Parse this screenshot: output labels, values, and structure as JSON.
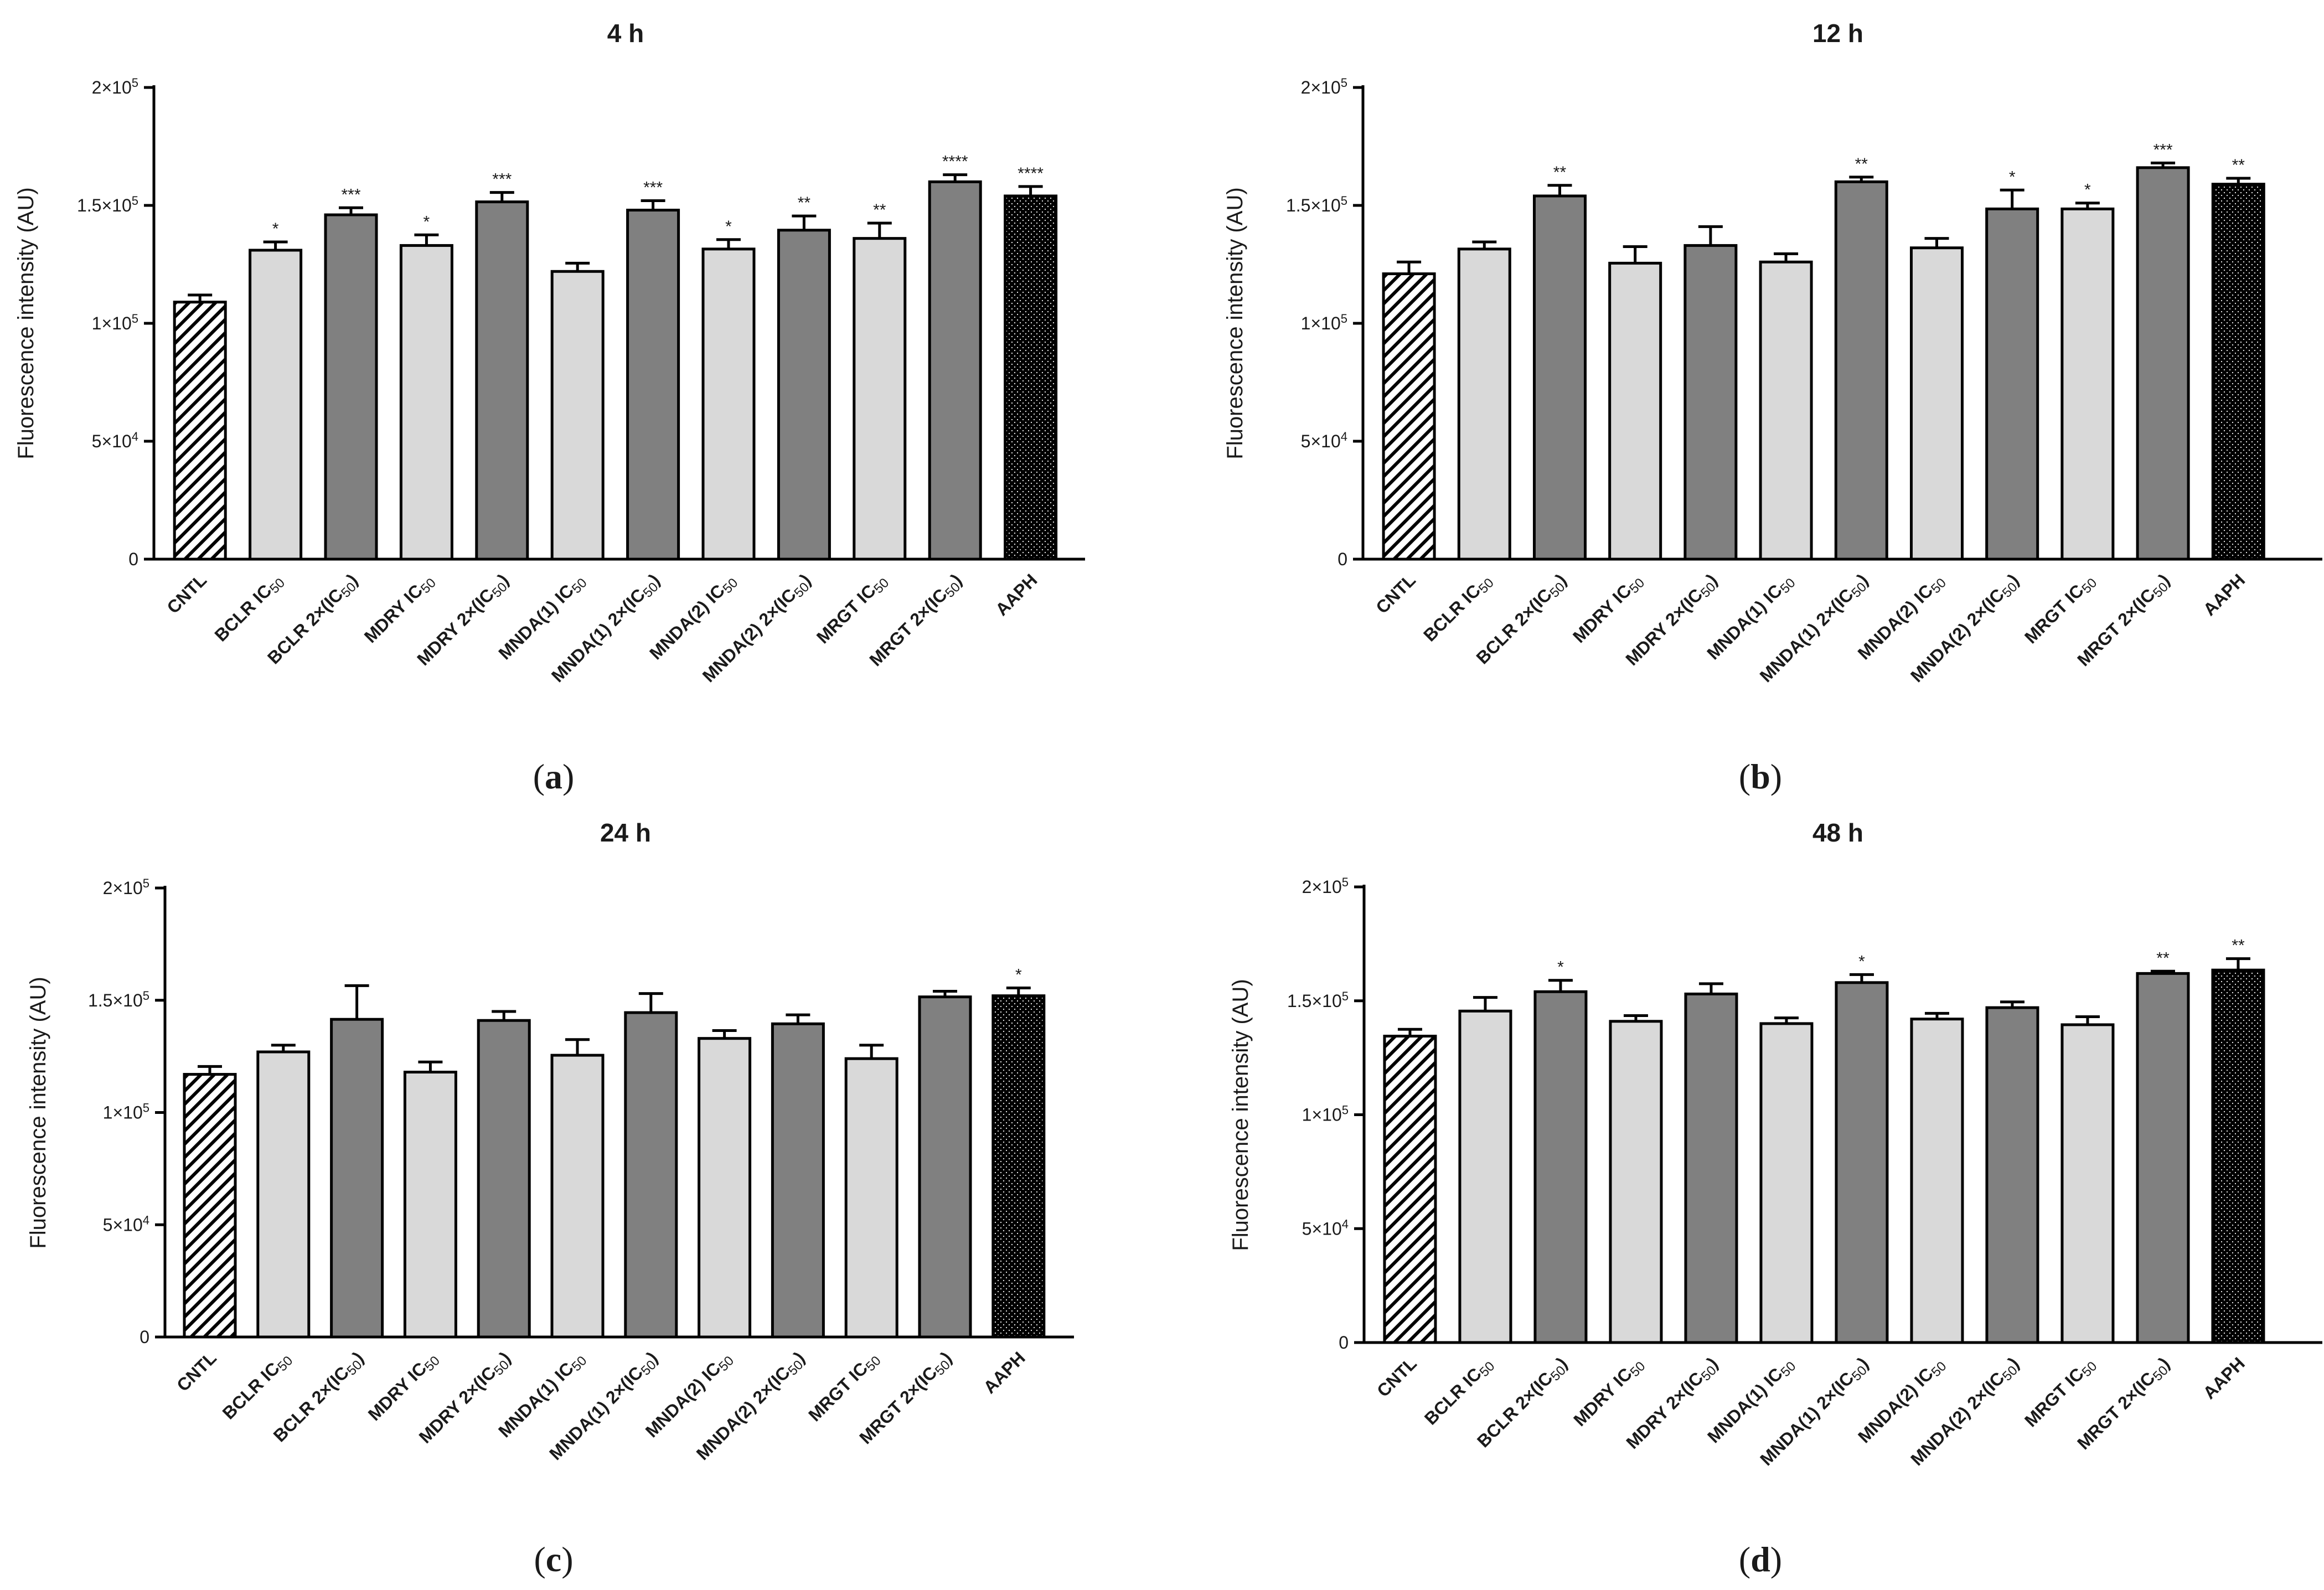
{
  "categories": [
    {
      "base": "CNTL",
      "kind": "none"
    },
    {
      "base": "BCLR",
      "kind": "ic"
    },
    {
      "base": "BCLR",
      "kind": "ic2"
    },
    {
      "base": "MDRY",
      "kind": "ic"
    },
    {
      "base": "MDRY",
      "kind": "ic2"
    },
    {
      "base": "MNDA(1)",
      "kind": "ic"
    },
    {
      "base": "MNDA(1)",
      "kind": "ic2"
    },
    {
      "base": "MNDA(2)",
      "kind": "ic"
    },
    {
      "base": "MNDA(2)",
      "kind": "ic2"
    },
    {
      "base": "MRGT",
      "kind": "ic"
    },
    {
      "base": "MRGT",
      "kind": "ic2"
    },
    {
      "base": "AAPH",
      "kind": "none"
    }
  ],
  "label_parts": {
    "ic": " IC",
    "ic2": " 2×(IC",
    "sub": "50",
    "close": ")"
  },
  "bar_styles": [
    "hatch",
    "light",
    "dark",
    "light",
    "dark",
    "light",
    "dark",
    "light",
    "dark",
    "light",
    "dark",
    "dots"
  ],
  "colors": {
    "light": "#d9d9d9",
    "dark": "#808080",
    "hatch_bg": "#ffffff",
    "hatch_line": "#000000",
    "dots_bg": "#000000",
    "dots_fg": "#ffffff",
    "axis": "#000000"
  },
  "y_axis": {
    "label": "Fluorescence intensity (AU)",
    "min": 0,
    "max": 200000,
    "ticks": [
      {
        "value": 0,
        "mant": "0",
        "exp": ""
      },
      {
        "value": 50000,
        "mant": "5×10",
        "exp": "4"
      },
      {
        "value": 100000,
        "mant": "1×10",
        "exp": "5"
      },
      {
        "value": 150000,
        "mant": "1.5×10",
        "exp": "5"
      },
      {
        "value": 200000,
        "mant": "2×10",
        "exp": "5"
      }
    ]
  },
  "chart_data": [
    {
      "type": "bar",
      "title": "4 h",
      "panel_label": "a",
      "ylabel": "Fluorescence intensity (AU)",
      "ylim": [
        0,
        200000
      ],
      "values": [
        109000,
        131000,
        146000,
        133000,
        151500,
        122000,
        148000,
        131500,
        139500,
        136000,
        160000,
        154000
      ],
      "errors": [
        3000,
        3500,
        3000,
        4500,
        4000,
        3500,
        4000,
        4000,
        6000,
        6500,
        3000,
        4000
      ],
      "significance": [
        "",
        "*",
        "***",
        "*",
        "***",
        "",
        "***",
        "*",
        "**",
        "**",
        "****",
        "****"
      ]
    },
    {
      "type": "bar",
      "title": "12 h",
      "panel_label": "b",
      "ylabel": "Fluorescence intensity (AU)",
      "ylim": [
        0,
        200000
      ],
      "values": [
        121000,
        131500,
        154000,
        125500,
        133000,
        126000,
        160000,
        132000,
        148500,
        148500,
        166000,
        159000
      ],
      "errors": [
        5000,
        3000,
        4500,
        7000,
        8000,
        3500,
        2000,
        4000,
        8000,
        2500,
        2000,
        2500
      ],
      "significance": [
        "",
        "",
        "**",
        "",
        "",
        "",
        "**",
        "",
        "*",
        "*",
        "***",
        "**"
      ]
    },
    {
      "type": "bar",
      "title": "24 h",
      "panel_label": "c",
      "ylabel": "Fluorescence intensity (AU)",
      "ylim": [
        0,
        200000
      ],
      "values": [
        117000,
        127000,
        141500,
        118000,
        141000,
        125500,
        144500,
        133000,
        139500,
        124000,
        151500,
        152000
      ],
      "errors": [
        3500,
        3000,
        15000,
        4500,
        4000,
        7000,
        8500,
        3500,
        4000,
        6000,
        2500,
        3500
      ],
      "significance": [
        "",
        "",
        "",
        "",
        "",
        "",
        "",
        "",
        "",
        "",
        "",
        "*"
      ]
    },
    {
      "type": "bar",
      "title": "48 h",
      "panel_label": "d",
      "ylabel": "Fluorescence intensity (AU)",
      "ylim": [
        0,
        200000
      ],
      "values": [
        134500,
        145500,
        154000,
        141000,
        153000,
        140000,
        158000,
        142000,
        147000,
        139500,
        162000,
        163500
      ],
      "errors": [
        3000,
        6000,
        5000,
        2500,
        4500,
        2500,
        3500,
        2500,
        2500,
        3500,
        1000,
        5000
      ],
      "significance": [
        "",
        "",
        "*",
        "",
        "",
        "",
        "*",
        "",
        "",
        "",
        "**",
        "**"
      ]
    }
  ]
}
